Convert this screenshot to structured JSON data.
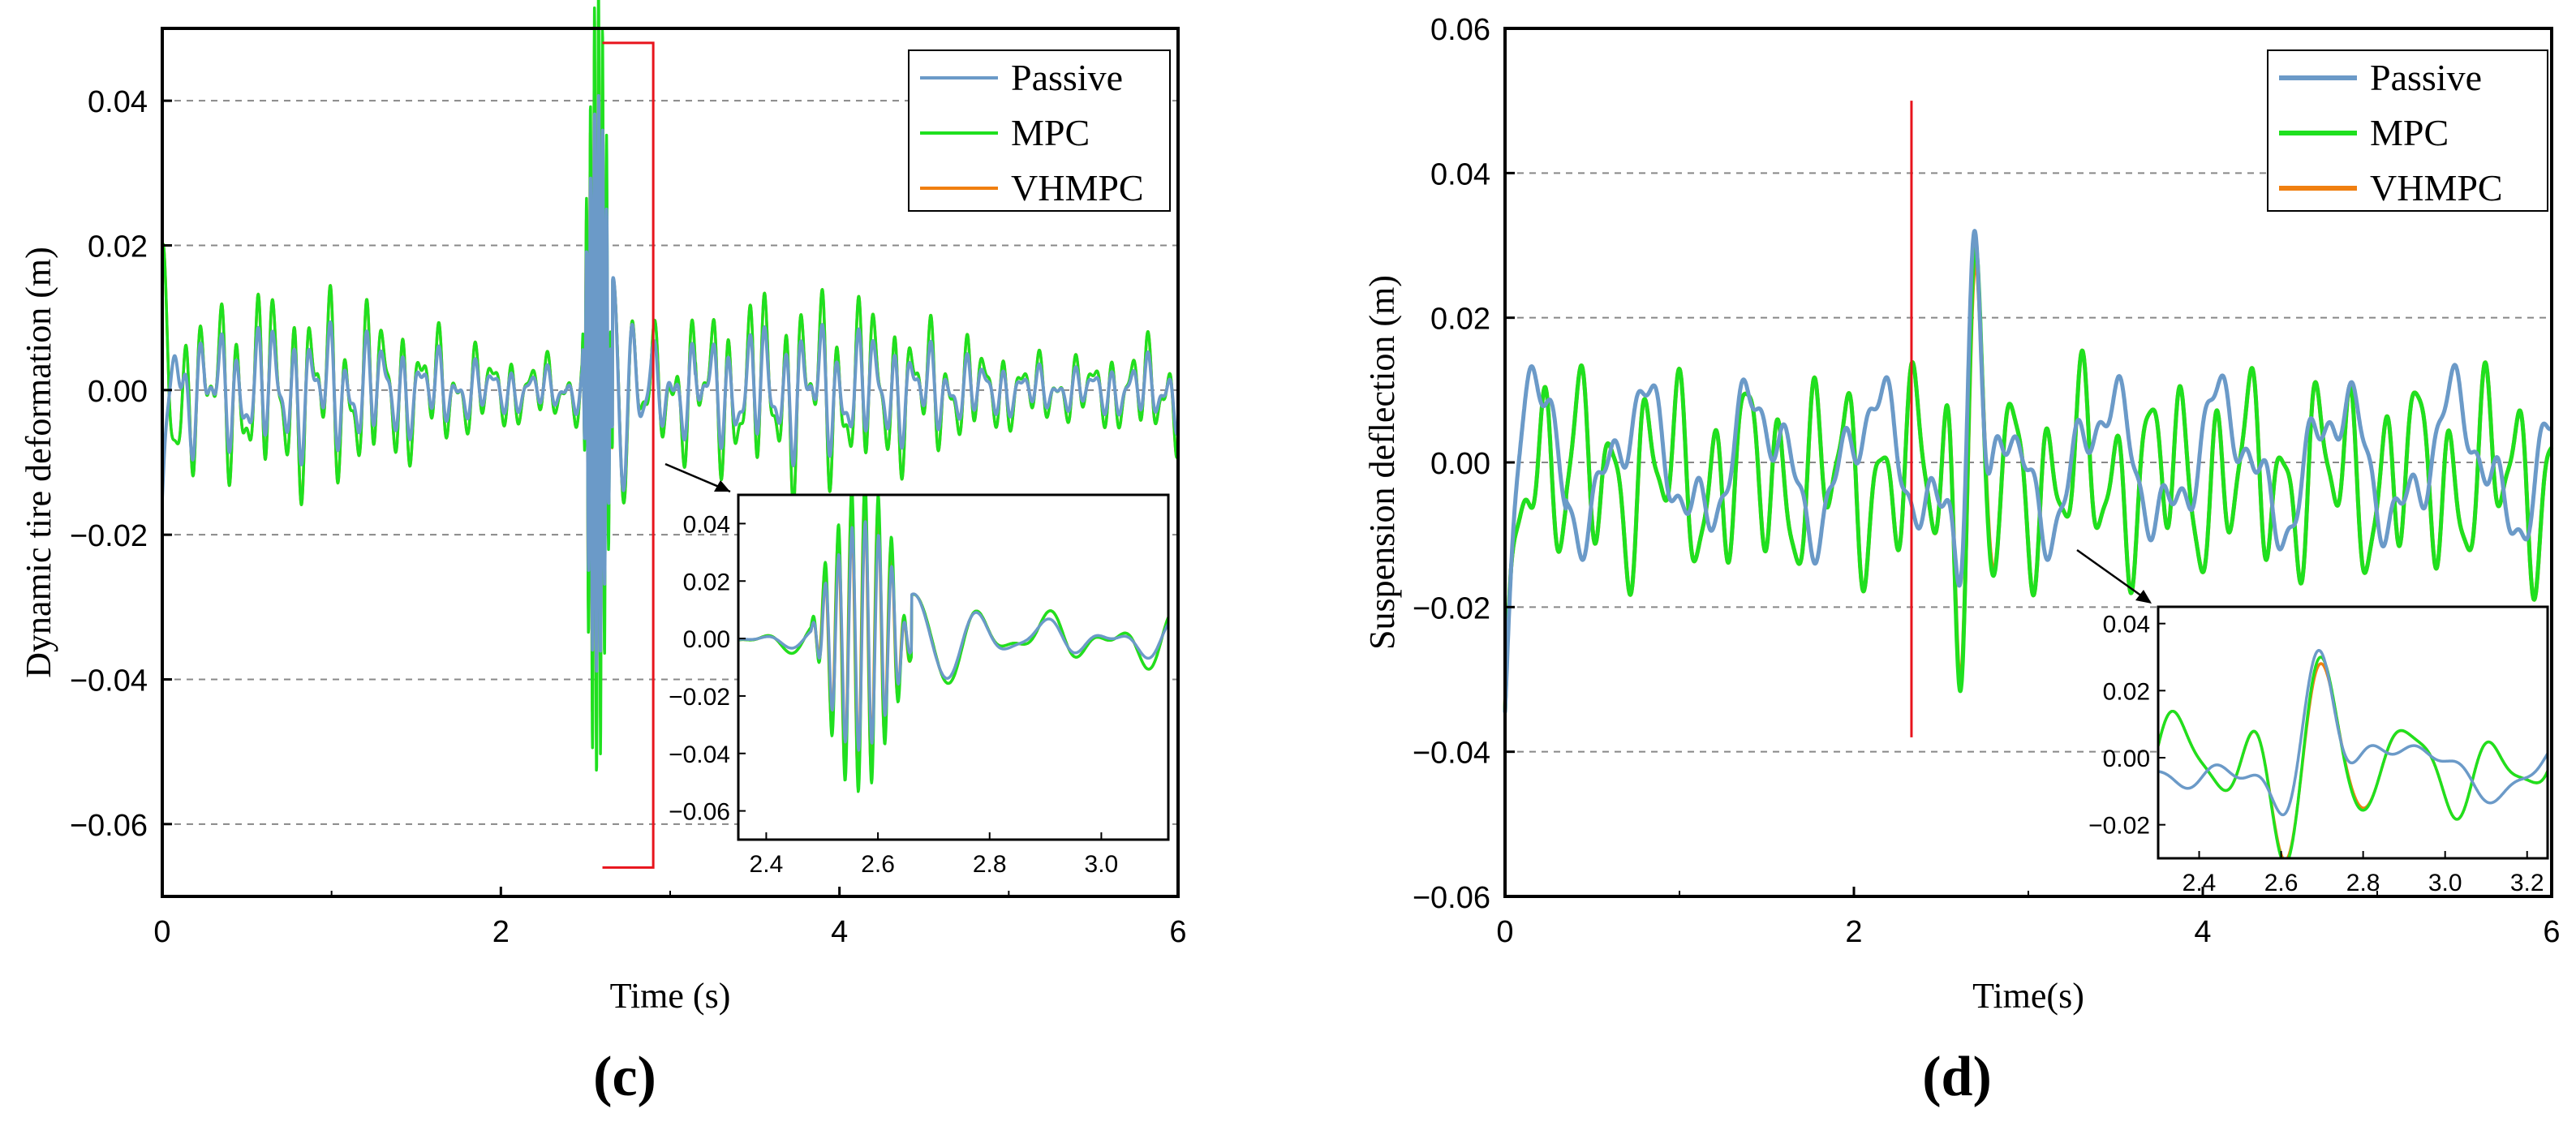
{
  "colors": {
    "passive": "#6b9ac8",
    "mpc": "#1fe01f",
    "vhmpc": "#f07f10",
    "grid": "#888888",
    "marker": "#e8141c"
  },
  "chart_data": [
    {
      "type": "line",
      "id": "c",
      "caption": "(c)",
      "xlabel": "Time (s)",
      "ylabel": "Dynamic tire deformation (m)",
      "xlim": [
        0,
        6
      ],
      "ylim": [
        -0.07,
        0.05
      ],
      "xticks": [
        0,
        2,
        4,
        6
      ],
      "xtick_labels": [
        "0",
        "2",
        "4",
        "6"
      ],
      "yticks": [
        -0.06,
        -0.04,
        -0.02,
        0.0,
        0.02,
        0.04
      ],
      "ytick_labels": [
        "−0.06",
        "−0.04",
        "−0.02",
        "0.00",
        "0.02",
        "0.04"
      ],
      "grid": "horizontal dashed",
      "legend": "top-right",
      "series": [
        {
          "name": "Passive",
          "color_key": "passive"
        },
        {
          "name": "MPC",
          "color_key": "mpc"
        },
        {
          "name": "VHMPC",
          "color_key": "vhmpc"
        }
      ],
      "highlight": {
        "x_from": 2.6,
        "x_to": 2.9,
        "y_from": -0.066,
        "y_to": 0.048
      },
      "inset": {
        "xlim": [
          2.35,
          3.12
        ],
        "ylim": [
          -0.07,
          0.05
        ],
        "xticks": [
          2.4,
          2.6,
          2.8,
          3.0
        ],
        "xtick_labels": [
          "2.4",
          "2.6",
          "2.8",
          "3.0"
        ],
        "yticks": [
          -0.06,
          -0.04,
          -0.02,
          0.0,
          0.02,
          0.04
        ],
        "ytick_labels": [
          "−0.06",
          "−0.04",
          "−0.02",
          "0.00",
          "0.02",
          "0.04"
        ]
      }
    },
    {
      "type": "line",
      "id": "d",
      "caption": "(d)",
      "xlabel": "Time(s)",
      "ylabel": "Suspension deflection (m)",
      "xlim": [
        0,
        6
      ],
      "ylim": [
        -0.06,
        0.06
      ],
      "xticks": [
        0,
        2,
        4,
        6
      ],
      "xtick_labels": [
        "0",
        "2",
        "4",
        "6"
      ],
      "yticks": [
        -0.06,
        -0.04,
        -0.02,
        0.0,
        0.02,
        0.04,
        0.06
      ],
      "ytick_labels": [
        "−0.06",
        "−0.04",
        "−0.02",
        "0.00",
        "0.02",
        "0.04",
        "0.06"
      ],
      "grid": "horizontal dashed",
      "legend": "top-right",
      "series": [
        {
          "name": "Passive",
          "color_key": "passive"
        },
        {
          "name": "MPC",
          "color_key": "mpc"
        },
        {
          "name": "VHMPC",
          "color_key": "vhmpc"
        }
      ],
      "marker_line": {
        "x": 2.33,
        "y_from": -0.038,
        "y_to": 0.05
      },
      "inset": {
        "xlim": [
          2.3,
          3.25
        ],
        "ylim": [
          -0.03,
          0.045
        ],
        "xticks": [
          2.4,
          2.6,
          2.8,
          3.0,
          3.2
        ],
        "xtick_labels": [
          "2.4",
          "2.6",
          "2.8",
          "3.0",
          "3.2"
        ],
        "yticks": [
          -0.02,
          0.0,
          0.02,
          0.04
        ],
        "ytick_labels": [
          "−0.02",
          "0.00",
          "0.02",
          "0.04"
        ]
      }
    }
  ]
}
